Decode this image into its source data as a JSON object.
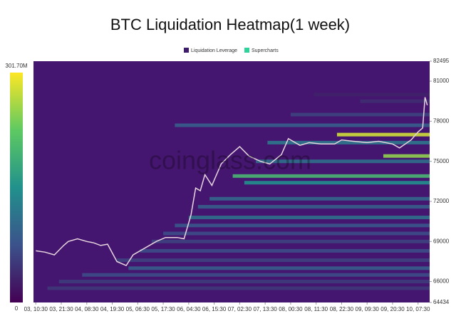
{
  "chart_data": {
    "type": "heatmap",
    "title": "BTC Liquidation Heatmap(1 week)",
    "watermark": "coinglass.com",
    "legend": [
      {
        "name": "Liquidation Leverage",
        "color": "#3f1b6b"
      },
      {
        "name": "Supercharts",
        "color": "#2fd39a"
      }
    ],
    "xlim": [
      -1,
      170
    ],
    "xticks": [
      {
        "value": 0,
        "label": "03, 10:30"
      },
      {
        "value": 11,
        "label": "03, 21:30"
      },
      {
        "value": 22,
        "label": "04, 08:30"
      },
      {
        "value": 33,
        "label": "04, 19:30"
      },
      {
        "value": 44,
        "label": "05, 06:30"
      },
      {
        "value": 55,
        "label": "05, 17:30"
      },
      {
        "value": 66,
        "label": "06, 04:30"
      },
      {
        "value": 77,
        "label": "06, 15:30"
      },
      {
        "value": 88,
        "label": "07, 02:30"
      },
      {
        "value": 99,
        "label": "07, 13:30"
      },
      {
        "value": 110,
        "label": "08, 00:30"
      },
      {
        "value": 121,
        "label": "08, 11:30"
      },
      {
        "value": 132,
        "label": "08, 22:30"
      },
      {
        "value": 143,
        "label": "09, 09:30"
      },
      {
        "value": 154,
        "label": "09, 20:30"
      },
      {
        "value": 165,
        "label": "10, 07:30"
      }
    ],
    "ylim": [
      64434,
      82495
    ],
    "yticks": [
      64434,
      66000,
      69000,
      72000,
      75000,
      78000,
      81000,
      82495
    ],
    "colorbar": {
      "clim": [
        0,
        301.7
      ],
      "ticks": [
        0,
        {
          "value": 301.7,
          "label": "301.70M"
        }
      ]
    },
    "price": {
      "color": "#e6d5de",
      "x": [
        0,
        4,
        8,
        12,
        14,
        18,
        22,
        25,
        28,
        31,
        35,
        39,
        42,
        47,
        52,
        56,
        61,
        64,
        67,
        69,
        71,
        73,
        76,
        80,
        84,
        88,
        92,
        97,
        101,
        106,
        109,
        114,
        118,
        123,
        129,
        132,
        137,
        143,
        148,
        154,
        157,
        162,
        165,
        167,
        168,
        169
      ],
      "values": [
        68300,
        68200,
        68000,
        68700,
        69000,
        69200,
        69000,
        68900,
        68700,
        68800,
        67500,
        67200,
        68000,
        68500,
        69000,
        69300,
        69300,
        69200,
        71000,
        73000,
        72800,
        74000,
        73200,
        74800,
        75500,
        76100,
        75400,
        75000,
        74800,
        75500,
        76700,
        76200,
        76400,
        76300,
        76300,
        76600,
        76500,
        76400,
        76500,
        76300,
        76000,
        76600,
        77200,
        77500,
        79800,
        79200
      ]
    },
    "bands": [
      {
        "price": 80000,
        "start": 120,
        "intensity": 30
      },
      {
        "price": 79500,
        "start": 140,
        "intensity": 40
      },
      {
        "price": 78500,
        "start": 110,
        "intensity": 60
      },
      {
        "price": 77700,
        "start": 60,
        "intensity": 90
      },
      {
        "price": 77000,
        "start": 130,
        "intensity": 280
      },
      {
        "price": 76400,
        "start": 100,
        "intensity": 120
      },
      {
        "price": 75400,
        "start": 150,
        "intensity": 250
      },
      {
        "price": 75000,
        "start": 95,
        "intensity": 110
      },
      {
        "price": 73900,
        "start": 85,
        "intensity": 200
      },
      {
        "price": 73400,
        "start": 90,
        "intensity": 150
      },
      {
        "price": 72200,
        "start": 75,
        "intensity": 100
      },
      {
        "price": 71600,
        "start": 70,
        "intensity": 90
      },
      {
        "price": 70800,
        "start": 66,
        "intensity": 110
      },
      {
        "price": 70200,
        "start": 60,
        "intensity": 80
      },
      {
        "price": 69600,
        "start": 55,
        "intensity": 70
      },
      {
        "price": 69000,
        "start": 50,
        "intensity": 60
      },
      {
        "price": 68300,
        "start": 45,
        "intensity": 70
      },
      {
        "price": 67600,
        "start": 35,
        "intensity": 60
      },
      {
        "price": 67000,
        "start": 40,
        "intensity": 90
      },
      {
        "price": 66500,
        "start": 20,
        "intensity": 70
      },
      {
        "price": 66000,
        "start": 10,
        "intensity": 55
      },
      {
        "price": 65500,
        "start": 5,
        "intensity": 50
      }
    ]
  }
}
